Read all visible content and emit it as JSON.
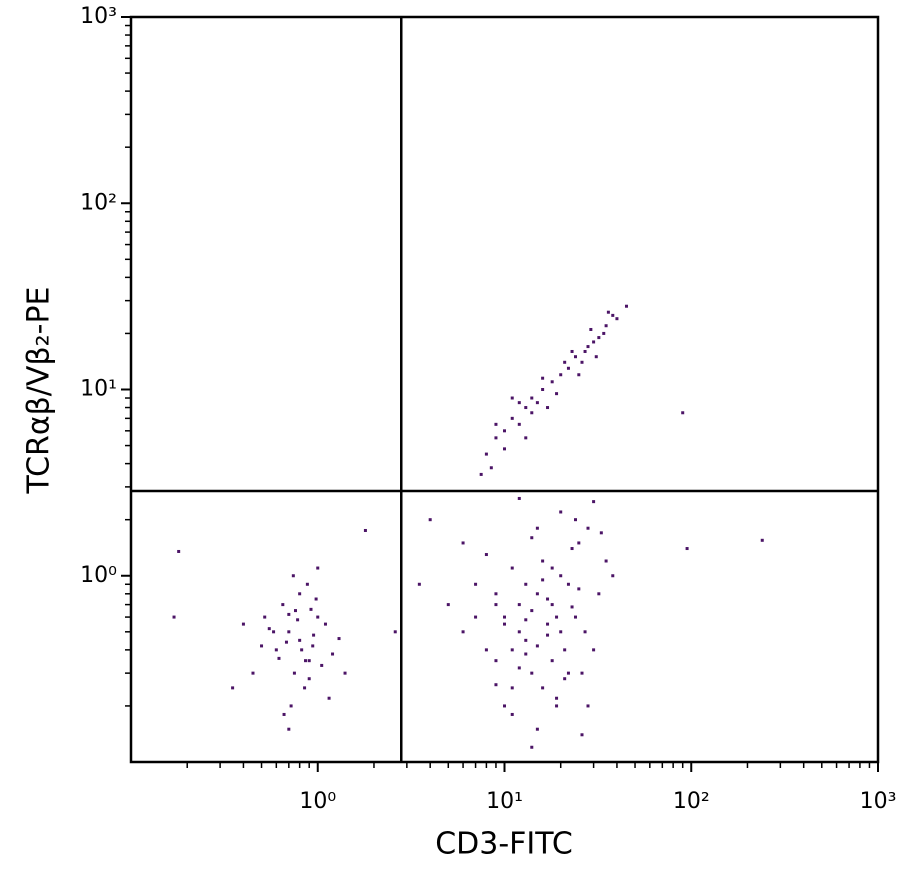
{
  "chart_data": {
    "type": "scatter",
    "xlabel": "CD3-FITC",
    "ylabel": "TCRαβ/Vβ₂-PE",
    "xscale": "log",
    "yscale": "log",
    "color": "#4b1466",
    "xlim": [
      0.1,
      1000
    ],
    "ylim": [
      0.1,
      1000
    ],
    "xticks": [
      {
        "value": 1,
        "label": "10⁰"
      },
      {
        "value": 10,
        "label": "10¹"
      },
      {
        "value": 100,
        "label": "10²"
      },
      {
        "value": 1000,
        "label": "10³"
      }
    ],
    "yticks": [
      {
        "value": 1,
        "label": "10⁰"
      },
      {
        "value": 10,
        "label": "10¹"
      },
      {
        "value": 100,
        "label": "10²"
      },
      {
        "value": 1000,
        "label": "10³"
      }
    ],
    "xminorticks": [
      0.2,
      0.3,
      0.4,
      0.5,
      0.6,
      0.7,
      0.8,
      0.9,
      2,
      3,
      4,
      5,
      6,
      7,
      8,
      9,
      20,
      30,
      40,
      50,
      60,
      70,
      80,
      90,
      200,
      300,
      400,
      500,
      600,
      700,
      800,
      900
    ],
    "yminorticks": [
      0.2,
      0.3,
      0.4,
      0.5,
      0.6,
      0.7,
      0.8,
      0.9,
      2,
      3,
      4,
      5,
      6,
      7,
      8,
      9,
      20,
      30,
      40,
      50,
      60,
      70,
      80,
      90,
      200,
      300,
      400,
      500,
      600,
      700,
      800,
      900
    ],
    "gates": {
      "x": 2.8,
      "y": 2.85
    },
    "x": [
      0.8,
      0.7,
      0.9,
      1.0,
      0.6,
      0.75,
      1.1,
      0.85,
      0.65,
      0.95,
      0.5,
      1.2,
      0.7,
      0.8,
      0.9,
      0.55,
      1.05,
      0.72,
      0.88,
      0.62,
      0.78,
      1.3,
      0.45,
      0.68,
      0.92,
      1.15,
      0.58,
      0.82,
      0.98,
      0.74,
      0.4,
      0.35,
      1.4,
      0.66,
      0.86,
      0.76,
      1.0,
      0.52,
      0.94,
      0.7,
      10,
      12,
      15,
      18,
      20,
      8,
      9,
      14,
      16,
      22,
      25,
      11,
      13,
      17,
      19,
      7,
      24,
      28,
      30,
      12,
      15,
      6,
      9,
      11,
      14,
      21,
      26,
      18,
      16,
      13,
      10,
      8,
      35,
      32,
      27,
      23,
      20,
      17,
      15,
      12,
      10,
      9,
      14,
      19,
      22,
      25,
      30,
      38,
      11,
      13,
      16,
      18,
      21,
      24,
      7,
      6,
      5,
      12,
      15,
      20,
      28,
      33,
      17,
      14,
      11,
      9,
      13,
      19,
      23,
      26,
      8,
      9,
      10,
      11,
      12,
      13,
      14,
      15,
      16,
      18,
      20,
      22,
      24,
      26,
      28,
      30,
      32,
      35,
      38,
      40,
      9,
      10,
      12,
      14,
      16,
      19,
      21,
      25,
      27,
      31,
      34,
      8.5,
      11,
      13,
      17,
      23,
      29,
      36,
      45,
      7.5,
      90,
      95,
      240,
      0.18,
      0.17,
      1.8,
      3.5,
      4,
      2.6
    ],
    "values": [
      0.45,
      0.5,
      0.35,
      0.6,
      0.4,
      0.3,
      0.55,
      0.25,
      0.7,
      0.48,
      0.42,
      0.38,
      0.62,
      0.8,
      0.28,
      0.52,
      0.33,
      0.2,
      0.9,
      0.36,
      0.58,
      0.46,
      0.3,
      0.44,
      0.66,
      0.22,
      0.5,
      0.4,
      0.75,
      1.0,
      0.55,
      0.25,
      0.3,
      0.18,
      0.35,
      0.65,
      1.1,
      0.6,
      0.42,
      0.15,
      0.6,
      0.5,
      0.8,
      0.7,
      1.0,
      0.4,
      0.35,
      0.3,
      1.2,
      0.9,
      1.5,
      0.25,
      0.45,
      0.55,
      0.2,
      0.6,
      2.0,
      1.8,
      2.5,
      0.7,
      0.15,
      0.5,
      0.8,
      1.1,
      0.65,
      0.4,
      0.3,
      0.35,
      0.25,
      0.9,
      0.2,
      1.3,
      1.2,
      0.8,
      0.5,
      1.4,
      2.2,
      0.75,
      0.42,
      0.32,
      0.55,
      0.7,
      1.6,
      0.6,
      0.3,
      0.85,
      0.4,
      1.0,
      0.18,
      0.38,
      0.95,
      1.1,
      0.28,
      0.6,
      0.9,
      1.5,
      0.7,
      2.6,
      1.8,
      0.5,
      0.2,
      1.7,
      0.48,
      0.12,
      0.4,
      0.26,
      0.58,
      0.22,
      0.68,
      0.14,
      4.5,
      5.5,
      6,
      7,
      6.5,
      8,
      9,
      8.5,
      10,
      11,
      12,
      13,
      15,
      14,
      17,
      18,
      19,
      22,
      25,
      24,
      6.5,
      4.8,
      8.5,
      7.5,
      11.5,
      9.5,
      14,
      12,
      16,
      15,
      20,
      3.8,
      9,
      5.5,
      8,
      16,
      21,
      26,
      28,
      3.5,
      7.5,
      1.4,
      1.55,
      1.35,
      0.6,
      1.75,
      0.9,
      2.0,
      0.5
    ]
  }
}
